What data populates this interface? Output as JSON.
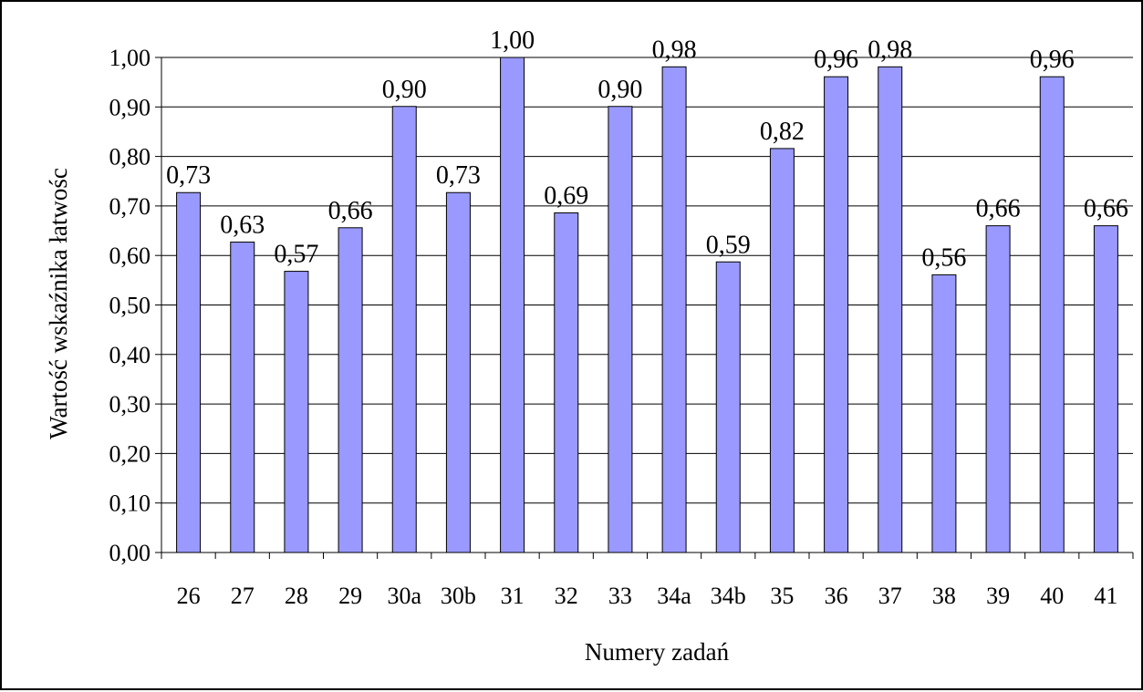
{
  "chart_data": {
    "type": "bar",
    "xlabel": "Numery zadań",
    "ylabel": "Wartość wskaźnika łatwośc",
    "ylim": [
      0,
      1.0
    ],
    "yticks": [
      "0,00",
      "0,10",
      "0,20",
      "0,30",
      "0,40",
      "0,50",
      "0,60",
      "0,70",
      "0,80",
      "0,90",
      "1,00"
    ],
    "grid": true,
    "legend": "none",
    "categories": [
      "26",
      "27",
      "28",
      "29",
      "30a",
      "30b",
      "31",
      "32",
      "33",
      "34a",
      "34b",
      "35",
      "36",
      "37",
      "38",
      "39",
      "40",
      "41"
    ],
    "values": [
      0.727,
      0.627,
      0.568,
      0.656,
      0.901,
      0.727,
      1.0,
      0.686,
      0.901,
      0.981,
      0.587,
      0.816,
      0.961,
      0.981,
      0.561,
      0.66,
      0.961,
      0.66
    ],
    "labels": [
      "0,73",
      "0,63",
      "0,57",
      "0,66",
      "0,90",
      "0,73",
      "1,00",
      "0,69",
      "0,90",
      "0,98",
      "0,59",
      "0,82",
      "0,96",
      "0,98",
      "0,56",
      "0,66",
      "0,96",
      "0,66"
    ],
    "bar_color": "#9999ff",
    "bar_outline": "#000000"
  }
}
